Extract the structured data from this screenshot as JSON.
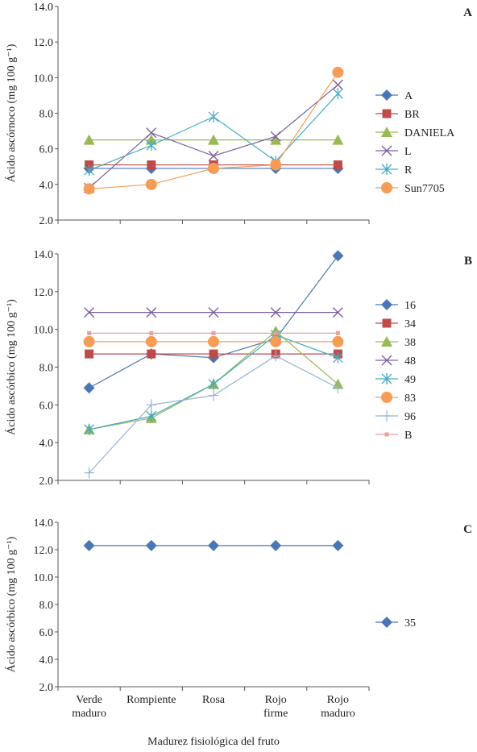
{
  "figure": {
    "x_title": "Madurez fisiológica del fruto",
    "x_categories": [
      [
        "Verde",
        "maduro"
      ],
      [
        "Rompiente"
      ],
      [
        "Rosa"
      ],
      [
        "Rojo",
        "firme"
      ],
      [
        "Rojo",
        "maduro"
      ]
    ]
  },
  "chart_data": [
    {
      "type": "line",
      "panel": "A",
      "ylabel": "Ácido ascórnoco (mg 100 g⁻¹)",
      "ylim": [
        2.0,
        14.0
      ],
      "yticks": [
        "2.0",
        "4.0",
        "6.0",
        "8.0",
        "10.0",
        "12.0",
        "14.0"
      ],
      "categories": [
        "Verde maduro",
        "Rompiente",
        "Rosa",
        "Rojo firme",
        "Rojo maduro"
      ],
      "legend_position": "right",
      "series": [
        {
          "name": "A",
          "color": "#4a77b4",
          "marker": "diamond",
          "values": [
            4.9,
            4.9,
            4.9,
            4.9,
            4.9
          ]
        },
        {
          "name": "BR",
          "color": "#be4b48",
          "marker": "square",
          "values": [
            5.1,
            5.1,
            5.1,
            5.1,
            5.1
          ]
        },
        {
          "name": "DANIELA",
          "color": "#98b954",
          "marker": "triangle",
          "values": [
            6.5,
            6.5,
            6.5,
            6.5,
            6.5
          ]
        },
        {
          "name": "L",
          "color": "#7d60a0",
          "marker": "x",
          "values": [
            3.8,
            6.9,
            5.6,
            6.7,
            9.6
          ]
        },
        {
          "name": "R",
          "color": "#46aac5",
          "marker": "star",
          "values": [
            4.8,
            6.2,
            7.8,
            5.3,
            9.1
          ]
        },
        {
          "name": "Sun7705",
          "color": "#f59d56",
          "marker": "circle",
          "values": [
            3.75,
            4.0,
            4.9,
            5.1,
            10.3
          ]
        }
      ]
    },
    {
      "type": "line",
      "panel": "B",
      "ylabel": "Ácido ascórbico (mg 100 g⁻¹)",
      "ylim": [
        2.0,
        14.0
      ],
      "yticks": [
        "2.0",
        "4.0",
        "6.0",
        "8.0",
        "10.0",
        "12.0",
        "14.0"
      ],
      "categories": [
        "Verde maduro",
        "Rompiente",
        "Rosa",
        "Rojo firme",
        "Rojo maduro"
      ],
      "legend_position": "right",
      "series": [
        {
          "name": "16",
          "color": "#4a77b4",
          "marker": "diamond",
          "values": [
            6.9,
            8.7,
            8.5,
            9.5,
            13.9
          ]
        },
        {
          "name": "34",
          "color": "#be4b48",
          "marker": "square",
          "values": [
            8.7,
            8.7,
            8.7,
            8.7,
            8.7
          ]
        },
        {
          "name": "38",
          "color": "#98b954",
          "marker": "triangle",
          "values": [
            4.7,
            5.3,
            7.1,
            9.9,
            7.1
          ]
        },
        {
          "name": "48",
          "color": "#7d60a0",
          "marker": "x",
          "values": [
            10.9,
            10.9,
            10.9,
            10.9,
            10.9
          ]
        },
        {
          "name": "49",
          "color": "#46aac5",
          "marker": "star",
          "values": [
            4.7,
            5.4,
            7.1,
            9.7,
            8.5
          ]
        },
        {
          "name": "83",
          "color": "#f59d56",
          "marker": "circle",
          "values": [
            9.35,
            9.35,
            9.35,
            9.35,
            9.35
          ]
        },
        {
          "name": "96",
          "color": "#95b3d7",
          "marker": "plus",
          "values": [
            2.4,
            6.0,
            6.5,
            8.6,
            6.9
          ]
        },
        {
          "name": "B",
          "color": "#e6a0a0",
          "marker": "dot",
          "values": [
            9.8,
            9.8,
            9.8,
            9.8,
            9.8
          ]
        }
      ]
    },
    {
      "type": "line",
      "panel": "C",
      "ylabel": "Ácido ascórbico (mg 100 g⁻¹)",
      "ylim": [
        2.0,
        14.0
      ],
      "yticks": [
        "2.0",
        "4.0",
        "6.0",
        "8.0",
        "10.0",
        "12.0",
        "14.0"
      ],
      "categories": [
        "Verde maduro",
        "Rompiente",
        "Rosa",
        "Rojo firme",
        "Rojo maduro"
      ],
      "legend_position": "right",
      "series": [
        {
          "name": "35",
          "color": "#4a77b4",
          "marker": "diamond",
          "values": [
            12.3,
            12.3,
            12.3,
            12.3,
            12.3
          ]
        }
      ]
    }
  ]
}
